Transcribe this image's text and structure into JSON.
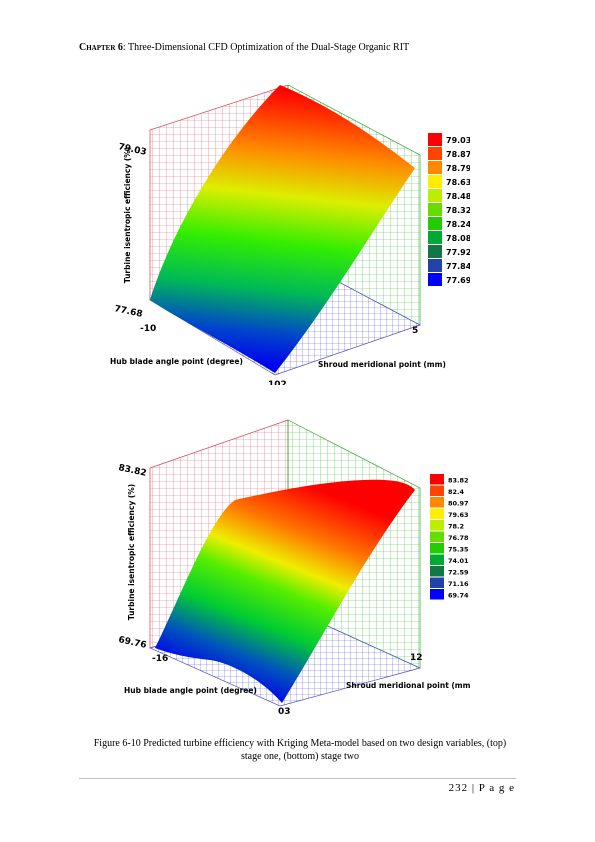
{
  "header": {
    "chapter": "Chapter 6",
    "title": ": Three-Dimensional CFD Optimization of the Dual-Stage Organic RIT"
  },
  "figures": [
    {
      "chart_data": {
        "type": "surface",
        "xlabel": "Hub blade angle point (degree)",
        "ylabel": "Shroud meridional point (mm)",
        "zlabel": "Turbine isentropic efficiency (%)",
        "x_ticks": [
          "-10",
          "102"
        ],
        "y_ticks": [
          "5"
        ],
        "z_ticks": [
          "79.03",
          "77.68"
        ],
        "zlim": [
          77.68,
          79.03
        ],
        "legend": [
          "79.03",
          "78.87",
          "78.79",
          "78.63",
          "78.48",
          "78.32",
          "78.24",
          "78.08",
          "77.92",
          "77.84",
          "77.69"
        ],
        "legend_colors": [
          "#ff0000",
          "#ff4400",
          "#ff8800",
          "#ffee00",
          "#bbee00",
          "#66dd00",
          "#22cc00",
          "#00aa33",
          "#117744",
          "#2244aa",
          "#0000ff"
        ]
      }
    },
    {
      "chart_data": {
        "type": "surface",
        "xlabel": "Hub blade angle point (degree)",
        "ylabel": "Shroud meridional point (mm)",
        "zlabel": "Turbine isentropic efficiency (%)",
        "x_ticks": [
          "-16",
          "03"
        ],
        "y_ticks": [
          "12"
        ],
        "z_ticks": [
          "83.82",
          "69.76"
        ],
        "zlim": [
          69.76,
          83.82
        ],
        "legend": [
          "83.82",
          "82.4",
          "80.97",
          "79.63",
          "78.2",
          "76.78",
          "75.35",
          "74.01",
          "72.59",
          "71.16",
          "69.74"
        ],
        "legend_colors": [
          "#ff0000",
          "#ff4400",
          "#ff8800",
          "#ffee00",
          "#bbee00",
          "#66dd00",
          "#22cc00",
          "#00aa33",
          "#117744",
          "#2244aa",
          "#0000ff"
        ]
      }
    }
  ],
  "caption": {
    "line1": "Figure 6-10 Predicted turbine efficiency with Kriging Meta-model based on two design variables, (top)",
    "line2": "stage one, (bottom) stage two"
  },
  "footer": {
    "page": "232 | P a g e"
  }
}
